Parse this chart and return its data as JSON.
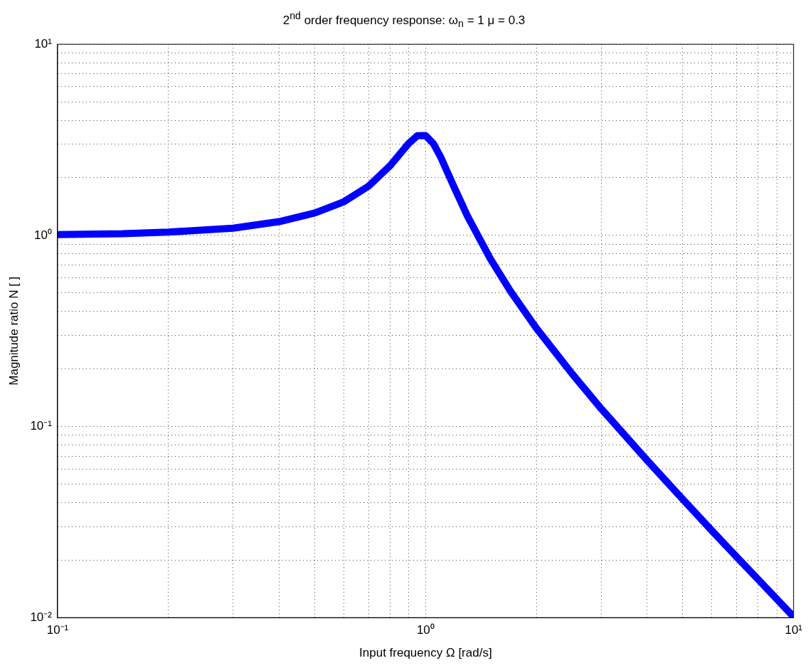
{
  "chart_data": {
    "type": "line",
    "title": "2$^{nd}$ order frequency response: ω$_{n}$ = 1 μ = 0.3",
    "xlabel": "Input frequency Ω [rad/s]",
    "ylabel": "Magnitude ratio N [ ]",
    "x": [
      0.1,
      0.15,
      0.2,
      0.3,
      0.4,
      0.5,
      0.6,
      0.7,
      0.8,
      0.9,
      0.95,
      1.0,
      1.05,
      1.1,
      1.2,
      1.3,
      1.5,
      1.7,
      2,
      2.5,
      3,
      4,
      5,
      6,
      7,
      8,
      10
    ],
    "series": [
      {
        "color": "#0000ff",
        "values": [
          1.01,
          1.02,
          1.04,
          1.09,
          1.18,
          1.31,
          1.5,
          1.81,
          2.31,
          3.03,
          3.32,
          3.33,
          3.02,
          2.56,
          1.76,
          1.26,
          0.753,
          0.511,
          0.327,
          0.189,
          0.124,
          0.0665,
          0.0416,
          0.0285,
          0.0208,
          0.0159,
          0.0101
        ]
      }
    ],
    "xlim": [
      0.1,
      10
    ],
    "ylim": [
      0.01,
      10
    ],
    "xticks": [
      {
        "value": 0.1,
        "label": "10⁻¹"
      },
      {
        "value": 0.2,
        "label": null
      },
      {
        "value": 0.3,
        "label": null
      },
      {
        "value": 0.4,
        "label": null
      },
      {
        "value": 0.5,
        "label": null
      },
      {
        "value": 0.6,
        "label": null
      },
      {
        "value": 0.7,
        "label": null
      },
      {
        "value": 0.8,
        "label": null
      },
      {
        "value": 0.9,
        "label": null
      },
      {
        "value": 1,
        "label": "10⁰"
      },
      {
        "value": 2,
        "label": null
      },
      {
        "value": 3,
        "label": null
      },
      {
        "value": 4,
        "label": null
      },
      {
        "value": 5,
        "label": null
      },
      {
        "value": 6,
        "label": null
      },
      {
        "value": 7,
        "label": null
      },
      {
        "value": 8,
        "label": null
      },
      {
        "value": 9,
        "label": null
      },
      {
        "value": 10,
        "label": "10¹"
      }
    ],
    "yticks": [
      {
        "value": 0.01,
        "label": "10⁻²"
      },
      {
        "value": 0.02,
        "label": null
      },
      {
        "value": 0.03,
        "label": null
      },
      {
        "value": 0.04,
        "label": null
      },
      {
        "value": 0.05,
        "label": null
      },
      {
        "value": 0.06,
        "label": null
      },
      {
        "value": 0.07,
        "label": null
      },
      {
        "value": 0.08,
        "label": null
      },
      {
        "value": 0.09,
        "label": null
      },
      {
        "value": 0.1,
        "label": "10⁻¹"
      },
      {
        "value": 0.2,
        "label": null
      },
      {
        "value": 0.3,
        "label": null
      },
      {
        "value": 0.4,
        "label": null
      },
      {
        "value": 0.5,
        "label": null
      },
      {
        "value": 0.6,
        "label": null
      },
      {
        "value": 0.7,
        "label": null
      },
      {
        "value": 0.8,
        "label": null
      },
      {
        "value": 0.9,
        "label": null
      },
      {
        "value": 1,
        "label": "10⁰"
      },
      {
        "value": 2,
        "label": null
      },
      {
        "value": 3,
        "label": null
      },
      {
        "value": 4,
        "label": null
      },
      {
        "value": 5,
        "label": null
      },
      {
        "value": 6,
        "label": null
      },
      {
        "value": 7,
        "label": null
      },
      {
        "value": 8,
        "label": null
      },
      {
        "value": 9,
        "label": null
      },
      {
        "value": 10,
        "label": "10¹"
      }
    ],
    "log": "xy",
    "grid": true,
    "marker": "none",
    "line_style": "solid"
  }
}
